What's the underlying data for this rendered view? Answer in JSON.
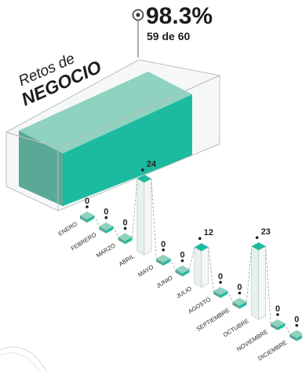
{
  "header": {
    "title_line1": "Retos de",
    "title_line2": "NEGOCIO",
    "percent": "98.3%",
    "count_label": "59 de 60"
  },
  "colors": {
    "accent": "#1cbba0",
    "accent_side": "#5aa896",
    "accent_top": "#8fd2c0",
    "glass_line": "#b9bfbd",
    "pillar_fill": "#e7f1ee",
    "dark_text": "#1c1c1c"
  },
  "chart_data": {
    "type": "bar",
    "title": "",
    "xlabel": "",
    "ylabel": "",
    "categories": [
      "ENERO",
      "FEBRERO",
      "MARZO",
      "ABRIL",
      "MAYO",
      "JUNIO",
      "JULIO",
      "AGOSTO",
      "SEPTIEMBRE",
      "OCTUBRE",
      "NOVIEMBRE",
      "DICIEMBRE"
    ],
    "values": [
      0,
      0,
      0,
      24,
      0,
      0,
      12,
      0,
      0,
      23,
      0,
      0
    ],
    "value_labels": [
      "0",
      "0",
      "0",
      "24",
      "0",
      "0",
      "12",
      "0",
      "0",
      "23",
      "0",
      "0"
    ],
    "ylim": [
      0,
      24
    ]
  }
}
